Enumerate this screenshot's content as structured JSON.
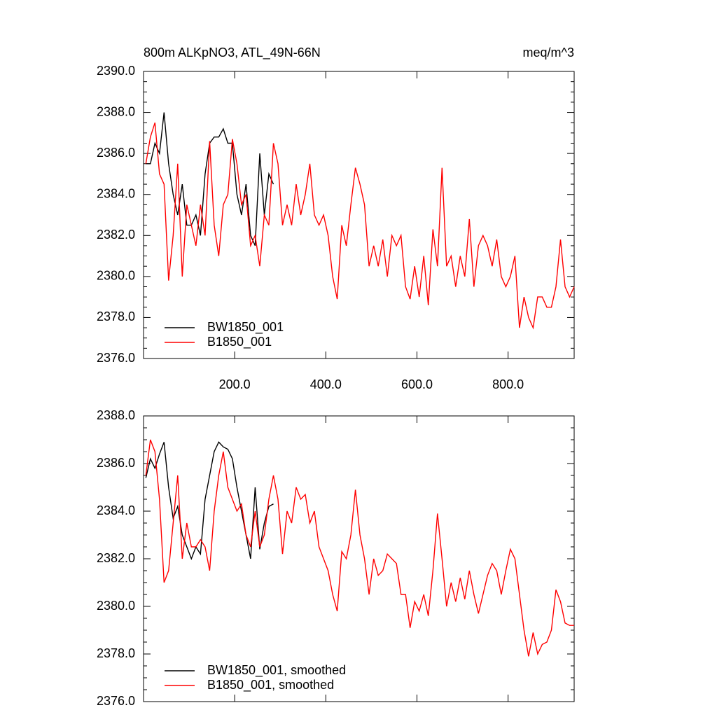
{
  "chart_data": [
    {
      "type": "line",
      "title": "800m ALKpNO3, ATL_49N-66N",
      "units": "meq/m^3",
      "xlim": [
        0,
        945
      ],
      "ylim": [
        2376,
        2390
      ],
      "xticks": [
        {
          "value": 200,
          "label": "200.0"
        },
        {
          "value": 400,
          "label": "400.0"
        },
        {
          "value": 600,
          "label": "600.0"
        },
        {
          "value": 800,
          "label": "800.0"
        }
      ],
      "yticks": [
        {
          "value": 2376,
          "label": "2376.0"
        },
        {
          "value": 2378,
          "label": "2378.0"
        },
        {
          "value": 2380,
          "label": "2380.0"
        },
        {
          "value": 2382,
          "label": "2382.0"
        },
        {
          "value": 2384,
          "label": "2384.0"
        },
        {
          "value": 2386,
          "label": "2386.0"
        },
        {
          "value": 2388,
          "label": "2388.0"
        },
        {
          "value": 2390,
          "label": "2390.0"
        }
      ],
      "show_xtick_labels": true,
      "legend": "lower left",
      "x": [
        5,
        15,
        25,
        35,
        45,
        55,
        65,
        75,
        85,
        95,
        105,
        115,
        125,
        135,
        145,
        155,
        165,
        175,
        185,
        195,
        205,
        215,
        225,
        235,
        245,
        255,
        265,
        275,
        285,
        295,
        305,
        315,
        325,
        335,
        345,
        355,
        365,
        375,
        385,
        395,
        405,
        415,
        425,
        435,
        445,
        455,
        465,
        475,
        485,
        495,
        505,
        515,
        525,
        535,
        545,
        555,
        565,
        575,
        585,
        595,
        605,
        615,
        625,
        635,
        645,
        655,
        665,
        675,
        685,
        695,
        705,
        715,
        725,
        735,
        745,
        755,
        765,
        775,
        785,
        795,
        805,
        815,
        825,
        835,
        845,
        855,
        865,
        875,
        885,
        895,
        905,
        915,
        925,
        935,
        945
      ],
      "series": [
        {
          "name": "BW1850_001",
          "color": "#000000",
          "values": [
            2385.5,
            2385.5,
            2386.5,
            2386,
            2388,
            2385.5,
            2384,
            2383,
            2384.5,
            2382.5,
            2382.5,
            2383,
            2382,
            2385,
            2386.5,
            2386.8,
            2386.8,
            2387.2,
            2386.5,
            2386.5,
            2384,
            2383,
            2384.5,
            2382,
            2381.5,
            2386,
            2383,
            2385,
            2384.5,
            null,
            null,
            null,
            null,
            null,
            null,
            null,
            null,
            null,
            null,
            null,
            null,
            null,
            null,
            null,
            null,
            null,
            null,
            null,
            null,
            null,
            null,
            null,
            null,
            null,
            null,
            null,
            null,
            null,
            null,
            null,
            null,
            null,
            null,
            null,
            null,
            null,
            null,
            null,
            null,
            null,
            null,
            null,
            null,
            null,
            null,
            null,
            null,
            null,
            null,
            null,
            null,
            null,
            null,
            null,
            null,
            null,
            null,
            null,
            null,
            null,
            null,
            null,
            null,
            null,
            null
          ]
        },
        {
          "name": "B1850_001",
          "color": "#ff0000",
          "values": [
            2385.5,
            2386.8,
            2387.5,
            2385,
            2384.5,
            2379.8,
            2382,
            2385.5,
            2380,
            2383.5,
            2382.5,
            2381.5,
            2383.5,
            2382,
            2386.6,
            2382.5,
            2381,
            2383.5,
            2384,
            2386.7,
            2385.5,
            2383.5,
            2384,
            2381.5,
            2382,
            2380.5,
            2383,
            2382.5,
            2386.5,
            2385.5,
            2382.5,
            2383.5,
            2382.5,
            2384.5,
            2383,
            2384,
            2385.5,
            2383,
            2382.5,
            2383,
            2382,
            2380,
            2378.9,
            2382.5,
            2381.5,
            2383.5,
            2385.3,
            2384.5,
            2383.5,
            2380.5,
            2381.5,
            2380.5,
            2381.8,
            2380,
            2382,
            2381.5,
            2382,
            2379.5,
            2378.9,
            2380.5,
            2379,
            2381,
            2378.6,
            2382.3,
            2380.5,
            2385.3,
            2380.5,
            2381,
            2379.5,
            2381,
            2380,
            2382.8,
            2379.5,
            2381.5,
            2382,
            2381.5,
            2380.5,
            2381.8,
            2380,
            2379.5,
            2380,
            2381,
            2377.5,
            2379,
            2378,
            2377.5,
            2379,
            2379,
            2378.5,
            2378.5,
            2379.5,
            2381.8,
            2379.5,
            2379,
            2379.5
          ]
        }
      ]
    },
    {
      "type": "line",
      "xlim": [
        0,
        945
      ],
      "ylim": [
        2376,
        2388
      ],
      "xticks": [
        200,
        400,
        600,
        800
      ],
      "yticks": [
        {
          "value": 2376,
          "label": "2376.0"
        },
        {
          "value": 2378,
          "label": "2378.0"
        },
        {
          "value": 2380,
          "label": "2380.0"
        },
        {
          "value": 2382,
          "label": "2382.0"
        },
        {
          "value": 2384,
          "label": "2384.0"
        },
        {
          "value": 2386,
          "label": "2386.0"
        },
        {
          "value": 2388,
          "label": "2388.0"
        }
      ],
      "show_xtick_labels": false,
      "legend": "lower left",
      "x": [
        5,
        15,
        25,
        35,
        45,
        55,
        65,
        75,
        85,
        95,
        105,
        115,
        125,
        135,
        145,
        155,
        165,
        175,
        185,
        195,
        205,
        215,
        225,
        235,
        245,
        255,
        265,
        275,
        285,
        295,
        305,
        315,
        325,
        335,
        345,
        355,
        365,
        375,
        385,
        395,
        405,
        415,
        425,
        435,
        445,
        455,
        465,
        475,
        485,
        495,
        505,
        515,
        525,
        535,
        545,
        555,
        565,
        575,
        585,
        595,
        605,
        615,
        625,
        635,
        645,
        655,
        665,
        675,
        685,
        695,
        705,
        715,
        725,
        735,
        745,
        755,
        765,
        775,
        785,
        795,
        805,
        815,
        825,
        835,
        845,
        855,
        865,
        875,
        885,
        895,
        905,
        915,
        925,
        935,
        945
      ],
      "series": [
        {
          "name": "BW1850_001, smoothed",
          "color": "#000000",
          "values": [
            2385.4,
            2386.2,
            2385.8,
            2386.4,
            2386.9,
            2385,
            2383.7,
            2384.2,
            2383,
            2382.5,
            2382,
            2382.5,
            2382.2,
            2384.5,
            2385.5,
            2386.5,
            2386.9,
            2386.7,
            2386.6,
            2386.2,
            2385,
            2384,
            2383,
            2382,
            2385,
            2382.4,
            2383.5,
            2384.2,
            2384.3,
            null,
            null,
            null,
            null,
            null,
            null,
            null,
            null,
            null,
            null,
            null,
            null,
            null,
            null,
            null,
            null,
            null,
            null,
            null,
            null,
            null,
            null,
            null,
            null,
            null,
            null,
            null,
            null,
            null,
            null,
            null,
            null,
            null,
            null,
            null,
            null,
            null,
            null,
            null,
            null,
            null,
            null,
            null,
            null,
            null,
            null,
            null,
            null,
            null,
            null,
            null,
            null,
            null,
            null,
            null,
            null,
            null,
            null,
            null,
            null,
            null,
            null,
            null,
            null,
            null,
            null
          ]
        },
        {
          "name": "B1850_001, smoothed",
          "color": "#ff0000",
          "values": [
            2385.5,
            2387,
            2386.5,
            2384.5,
            2381,
            2381.5,
            2383.5,
            2385.5,
            2382,
            2383.5,
            2382.5,
            2382.5,
            2382.8,
            2382.5,
            2381.5,
            2384,
            2385.5,
            2386.5,
            2385,
            2384.5,
            2384,
            2384.3,
            2383,
            2382.5,
            2384,
            2382.5,
            2383,
            2384.5,
            2385.5,
            2384.5,
            2382.2,
            2384,
            2383.5,
            2385,
            2384.5,
            2384.7,
            2383.5,
            2384,
            2382.5,
            2382,
            2381.5,
            2380.5,
            2379.8,
            2382.3,
            2382,
            2383,
            2384.9,
            2383,
            2382,
            2380.5,
            2382,
            2381.3,
            2381.5,
            2382.2,
            2382,
            2381.8,
            2380.5,
            2380.5,
            2379.1,
            2380.2,
            2379.8,
            2380.5,
            2379.6,
            2381.5,
            2383.9,
            2382,
            2380,
            2381,
            2380.2,
            2381.2,
            2380.3,
            2381.5,
            2380.5,
            2379.7,
            2380.5,
            2381.3,
            2381.8,
            2381.5,
            2380.5,
            2381.5,
            2382.4,
            2382,
            2380.5,
            2379,
            2377.9,
            2378.9,
            2378,
            2378.4,
            2378.5,
            2379,
            2380.7,
            2380.2,
            2379.3,
            2379.2,
            2379.2
          ]
        }
      ]
    }
  ]
}
